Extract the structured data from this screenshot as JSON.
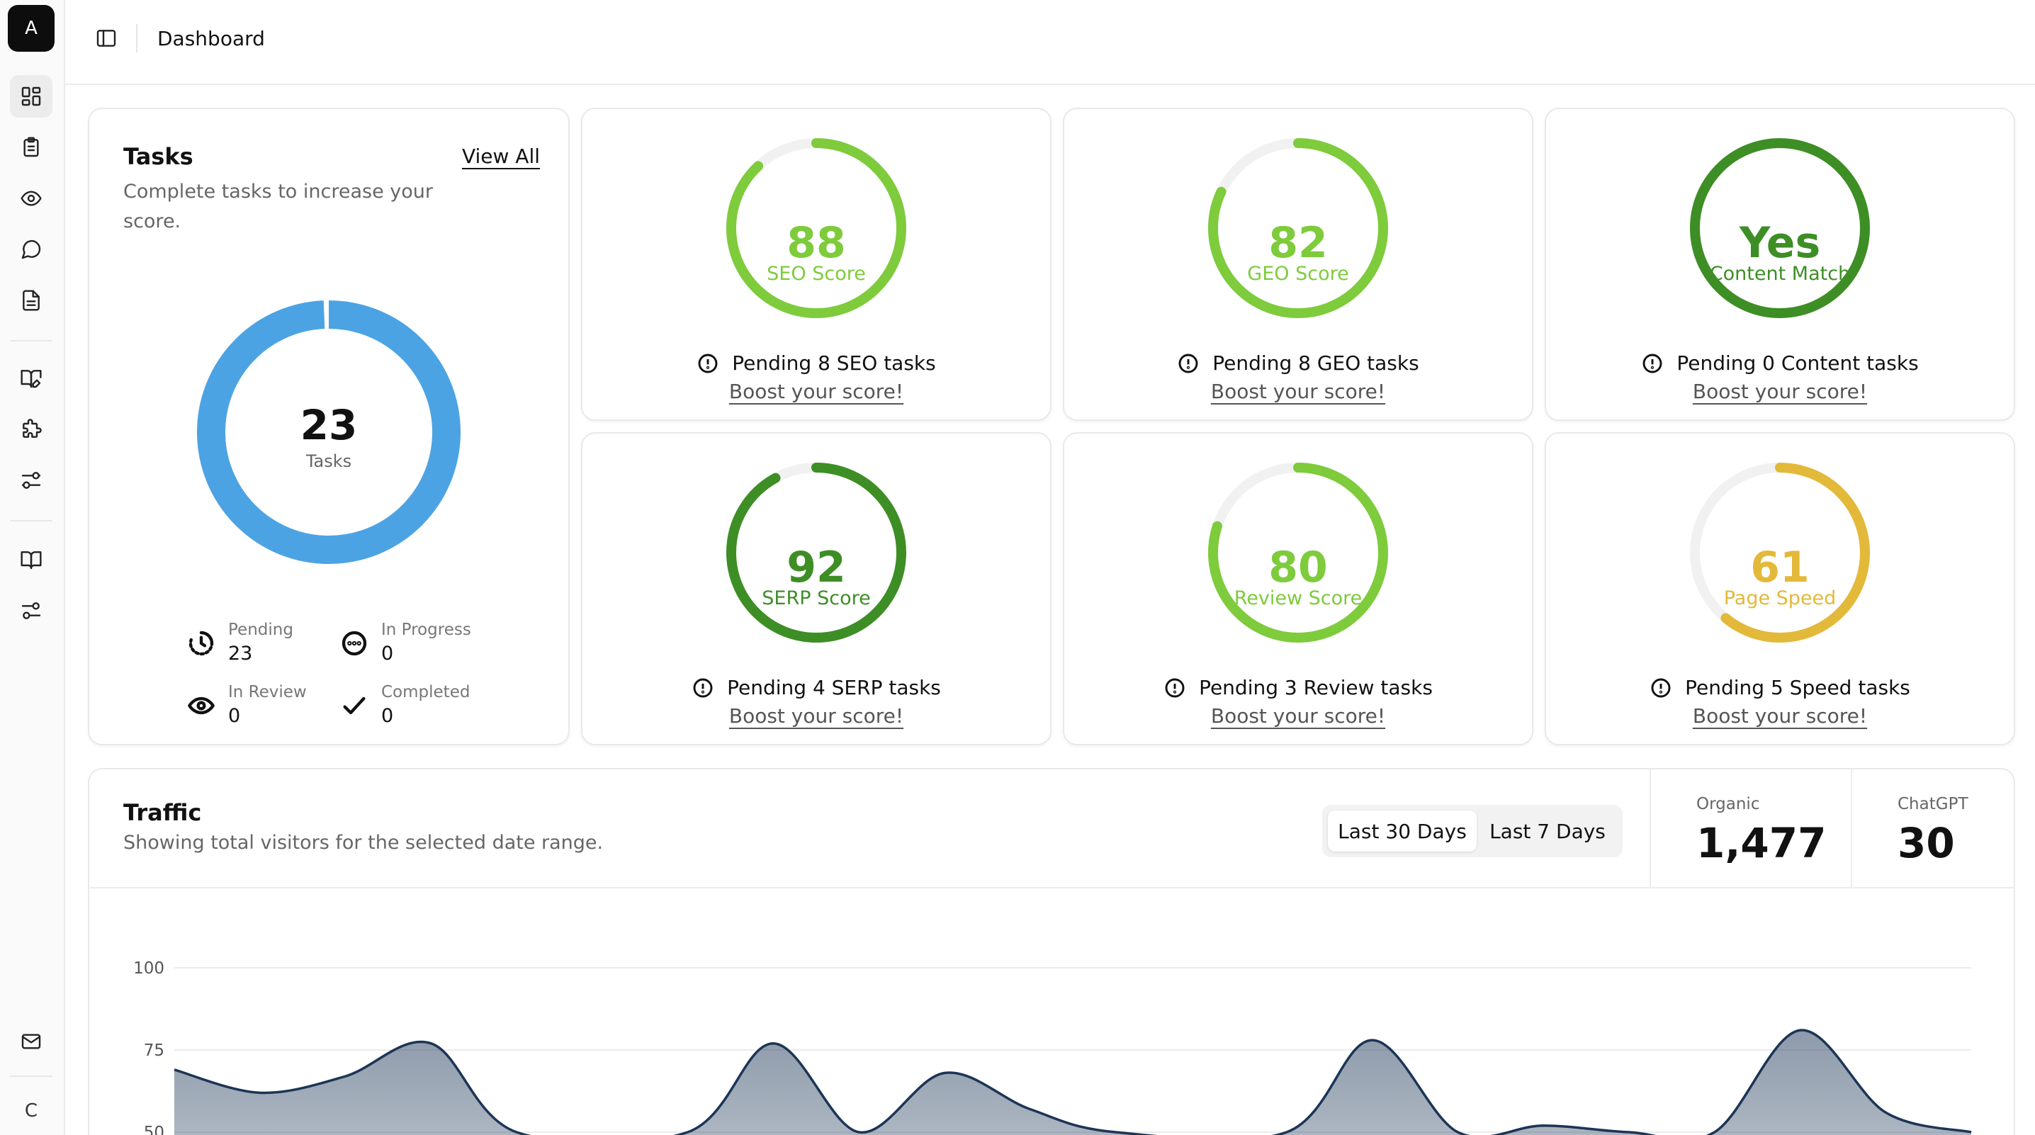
{
  "app": {
    "logo_letter": "A",
    "user_initial": "C"
  },
  "header": {
    "title": "Dashboard"
  },
  "sidebar": {
    "items": [
      {
        "icon": "dashboard-icon"
      },
      {
        "icon": "clipboard-icon"
      },
      {
        "icon": "eye-icon"
      },
      {
        "icon": "message-icon"
      },
      {
        "icon": "document-icon"
      },
      {
        "icon": "book-open-edit-icon"
      },
      {
        "icon": "puzzle-icon"
      },
      {
        "icon": "sliders-icon"
      },
      {
        "icon": "book-icon"
      },
      {
        "icon": "settings-sliders-icon"
      },
      {
        "icon": "mail-icon"
      }
    ]
  },
  "tasks": {
    "title": "Tasks",
    "subtitle": "Complete tasks to increase your score.",
    "view_all": "View All",
    "total": "23",
    "total_label": "Tasks",
    "donut_color": "#4ca3e3",
    "stats": [
      {
        "label": "Pending",
        "value": "23",
        "icon": "clock-icon"
      },
      {
        "label": "In Progress",
        "value": "0",
        "icon": "dots-circle-icon"
      },
      {
        "label": "In Review",
        "value": "0",
        "icon": "eye-icon"
      },
      {
        "label": "Completed",
        "value": "0",
        "icon": "check-icon"
      }
    ]
  },
  "scores": [
    {
      "value": "88",
      "label": "SEO Score",
      "fill": 0.88,
      "color": "#7ecb3c",
      "pending": "Pending 8 SEO tasks",
      "boost": "Boost your score!"
    },
    {
      "value": "82",
      "label": "GEO Score",
      "fill": 0.82,
      "color": "#7ecb3c",
      "pending": "Pending 8 GEO tasks",
      "boost": "Boost your score!"
    },
    {
      "value": "Yes",
      "label": "Content Match",
      "fill": 1.0,
      "color": "#3e8e26",
      "pending": "Pending 0 Content tasks",
      "boost": "Boost your score!"
    },
    {
      "value": "92",
      "label": "SERP Score",
      "fill": 0.92,
      "color": "#3e8e26",
      "pending": "Pending 4 SERP tasks",
      "boost": "Boost your score!"
    },
    {
      "value": "80",
      "label": "Review Score",
      "fill": 0.8,
      "color": "#7ecb3c",
      "pending": "Pending 3 Review tasks",
      "boost": "Boost your score!"
    },
    {
      "value": "61",
      "label": "Page Speed",
      "fill": 0.61,
      "color": "#e3b93a",
      "pending": "Pending 5 Speed tasks",
      "boost": "Boost your score!"
    }
  ],
  "traffic": {
    "title": "Traffic",
    "subtitle": "Showing total visitors for the selected date range.",
    "ranges": [
      "Last 30 Days",
      "Last 7 Days"
    ],
    "selected_range": "Last 30 Days",
    "metrics": [
      {
        "label": "Organic",
        "value": "1,477"
      },
      {
        "label": "ChatGPT",
        "value": "30"
      }
    ]
  },
  "chart_data": {
    "type": "area",
    "y_ticks": [
      "100",
      "75",
      "50"
    ],
    "ylim": [
      50,
      100
    ],
    "grid": true,
    "color": "#1c3556",
    "points": [
      [
        0,
        69
      ],
      [
        2,
        62
      ],
      [
        4,
        67
      ],
      [
        6,
        77
      ],
      [
        8,
        50
      ],
      [
        12,
        50
      ],
      [
        14,
        77
      ],
      [
        16,
        50
      ],
      [
        18,
        68
      ],
      [
        20,
        57
      ],
      [
        22,
        50
      ],
      [
        26,
        50
      ],
      [
        28,
        78
      ],
      [
        30,
        50
      ],
      [
        32,
        52
      ],
      [
        34,
        50
      ],
      [
        36,
        50
      ],
      [
        38,
        81
      ],
      [
        40,
        56
      ],
      [
        42,
        50
      ]
    ]
  }
}
